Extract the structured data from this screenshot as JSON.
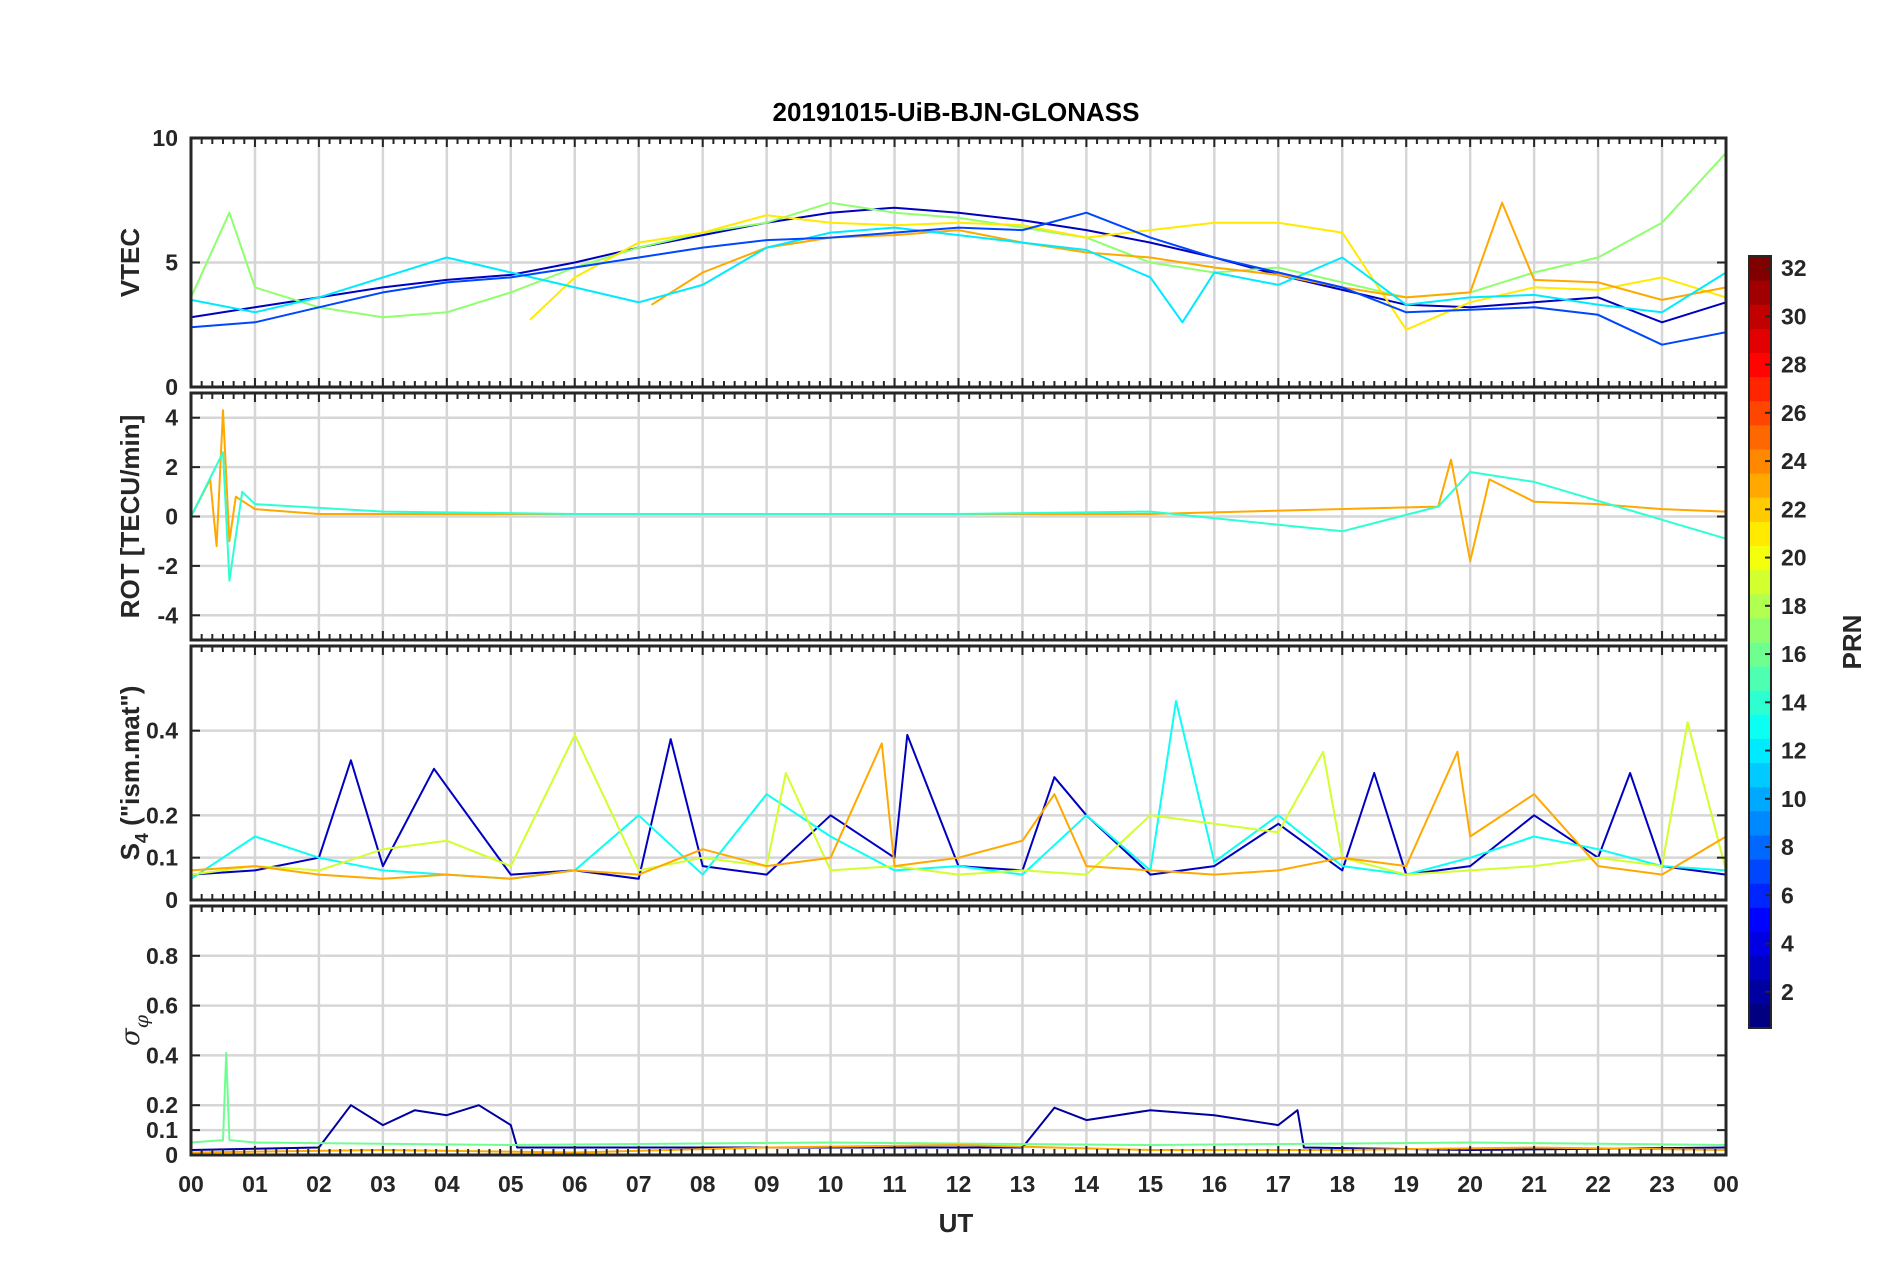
{
  "chart_data": {
    "type": "line",
    "title": "20191015-UiB-BJN-GLONASS",
    "xlabel": "UT",
    "x_tick_labels": [
      "00",
      "01",
      "02",
      "03",
      "04",
      "05",
      "06",
      "07",
      "08",
      "09",
      "10",
      "11",
      "12",
      "13",
      "14",
      "15",
      "16",
      "17",
      "18",
      "19",
      "20",
      "21",
      "22",
      "23",
      "00"
    ],
    "xlim": [
      0,
      24
    ],
    "grid": true,
    "colorbar": {
      "label": "PRN",
      "colormap": "jet",
      "range": [
        1,
        32
      ],
      "tick_labels": [
        "2",
        "4",
        "6",
        "8",
        "10",
        "12",
        "14",
        "16",
        "18",
        "20",
        "22",
        "24",
        "26",
        "28",
        "30",
        "32"
      ]
    },
    "panels": [
      {
        "id": "vtec",
        "ylabel": "VTEC",
        "ylim": [
          0,
          10
        ],
        "yticks": [
          0,
          5,
          10
        ],
        "ytick_labels": [
          "0",
          "5",
          "10"
        ],
        "series": [
          {
            "prn": 3,
            "x": [
              0,
              1,
              2,
              3,
              4,
              5,
              6,
              7,
              8,
              9,
              10,
              11,
              12,
              13,
              14,
              15,
              16,
              17,
              18,
              19,
              20,
              21,
              22,
              23,
              24
            ],
            "y": [
              2.8,
              3.2,
              3.6,
              4.0,
              4.3,
              4.5,
              5.0,
              5.6,
              6.1,
              6.6,
              7.0,
              7.2,
              7.0,
              6.7,
              6.3,
              5.8,
              5.2,
              4.5,
              3.9,
              3.3,
              3.2,
              3.4,
              3.6,
              2.6,
              3.4
            ]
          },
          {
            "prn": 17,
            "x": [
              0,
              0.6,
              1,
              2,
              3,
              4,
              5,
              6,
              7,
              8,
              9,
              10,
              11,
              12,
              13,
              14,
              15,
              16,
              17,
              18,
              19,
              20,
              21,
              22,
              23,
              24
            ],
            "y": [
              3.6,
              7.0,
              4.0,
              3.2,
              2.8,
              3.0,
              3.8,
              4.8,
              5.6,
              6.2,
              6.6,
              7.4,
              7.0,
              6.8,
              6.4,
              6.0,
              5.0,
              4.6,
              4.8,
              4.2,
              3.6,
              3.8,
              4.6,
              5.2,
              6.6,
              9.4
            ]
          },
          {
            "prn": 21,
            "x": [
              5.3,
              6,
              7,
              8,
              9,
              10,
              11,
              12,
              13,
              14,
              15,
              16,
              17,
              18,
              19,
              20,
              21,
              22,
              23,
              24
            ],
            "y": [
              2.7,
              4.4,
              5.8,
              6.2,
              6.9,
              6.6,
              6.5,
              6.6,
              6.5,
              6.0,
              6.3,
              6.6,
              6.6,
              6.2,
              2.3,
              3.4,
              4.0,
              3.9,
              4.4,
              3.6
            ]
          },
          {
            "prn": 23,
            "x": [
              7.2,
              8,
              9,
              10,
              11,
              12,
              13,
              14,
              15,
              16,
              17,
              18,
              19,
              20,
              20.5,
              21,
              22,
              23,
              24
            ],
            "y": [
              3.3,
              4.6,
              5.6,
              6.0,
              6.1,
              6.3,
              5.8,
              5.4,
              5.2,
              4.8,
              4.5,
              4.0,
              3.6,
              3.8,
              7.4,
              4.3,
              4.2,
              3.5,
              4.0
            ]
          },
          {
            "prn": 12,
            "x": [
              0,
              1,
              2,
              3,
              4,
              5,
              6,
              7,
              8,
              9,
              10,
              11,
              12,
              13,
              14,
              15,
              15.5,
              16,
              17,
              18,
              19,
              20,
              21,
              22,
              23,
              24
            ],
            "y": [
              3.5,
              3.0,
              3.6,
              4.4,
              5.2,
              4.6,
              4.0,
              3.4,
              4.1,
              5.6,
              6.2,
              6.4,
              6.1,
              5.8,
              5.5,
              4.4,
              2.6,
              4.6,
              4.1,
              5.2,
              3.3,
              3.6,
              3.7,
              3.3,
              3.0,
              4.6
            ]
          },
          {
            "prn": 7,
            "x": [
              0,
              1,
              2,
              3,
              4,
              5,
              6,
              7,
              8,
              9,
              10,
              11,
              12,
              13,
              14,
              15,
              16,
              17,
              18,
              19,
              20,
              21,
              22,
              23,
              24
            ],
            "y": [
              2.4,
              2.6,
              3.2,
              3.8,
              4.2,
              4.4,
              4.8,
              5.2,
              5.6,
              5.9,
              6.0,
              6.2,
              6.4,
              6.3,
              7.0,
              6.0,
              5.2,
              4.6,
              4.0,
              3.0,
              3.1,
              3.2,
              2.9,
              1.7,
              2.2
            ]
          }
        ]
      },
      {
        "id": "rot",
        "ylabel": "ROT [TECU/min]",
        "ylim": [
          -5,
          5
        ],
        "yticks": [
          -4,
          -2,
          0,
          2,
          4
        ],
        "ytick_labels": [
          "-4",
          "-2",
          "0",
          "2",
          "4"
        ],
        "series": [
          {
            "prn": 23,
            "x": [
              0,
              0.3,
              0.4,
              0.5,
              0.6,
              0.7,
              1,
              2,
              5,
              10,
              15,
              19.5,
              19.7,
              20,
              20.3,
              21,
              22,
              23,
              24
            ],
            "y": [
              0,
              1.5,
              -1.2,
              4.3,
              -1.0,
              0.8,
              0.3,
              0.1,
              0.1,
              0.1,
              0.1,
              0.4,
              2.3,
              -1.8,
              1.5,
              0.6,
              0.5,
              0.3,
              0.2
            ]
          },
          {
            "prn": 14,
            "x": [
              0,
              0.5,
              0.6,
              0.8,
              1,
              3,
              6,
              9,
              12,
              15,
              18,
              19.5,
              20,
              21,
              24
            ],
            "y": [
              0,
              2.6,
              -2.6,
              1.0,
              0.5,
              0.2,
              0.1,
              0.1,
              0.1,
              0.2,
              -0.6,
              0.4,
              1.8,
              1.4,
              -0.9
            ]
          }
        ]
      },
      {
        "id": "s4",
        "ylabel": "S4 (\"ism.mat\")",
        "ylim": [
          0,
          0.6
        ],
        "yticks": [
          0,
          0.1,
          0.2,
          0.4
        ],
        "ytick_labels": [
          "0",
          "0.1",
          "0.2",
          "0.4"
        ],
        "series": [
          {
            "prn": 3,
            "x": [
              0,
              1,
              2,
              2.5,
              3,
              3.8,
              5,
              6,
              7,
              7.5,
              8,
              9,
              10,
              11,
              11.2,
              12,
              13,
              13.5,
              14,
              15,
              16,
              17,
              18,
              18.5,
              19,
              20,
              21,
              22,
              22.5,
              23,
              24
            ],
            "y": [
              0.06,
              0.07,
              0.1,
              0.33,
              0.08,
              0.31,
              0.06,
              0.07,
              0.05,
              0.38,
              0.08,
              0.06,
              0.2,
              0.1,
              0.39,
              0.08,
              0.07,
              0.29,
              0.2,
              0.06,
              0.08,
              0.18,
              0.07,
              0.3,
              0.06,
              0.08,
              0.2,
              0.1,
              0.3,
              0.08,
              0.06
            ]
          },
          {
            "prn": 13,
            "x": [
              0,
              1,
              2,
              3,
              4,
              5,
              6,
              7,
              8,
              9,
              10,
              11,
              12,
              13,
              14,
              15,
              15.4,
              16,
              17,
              18,
              19,
              20,
              21,
              22,
              23,
              24
            ],
            "y": [
              0.05,
              0.15,
              0.1,
              0.07,
              0.06,
              0.05,
              0.07,
              0.2,
              0.06,
              0.25,
              0.15,
              0.07,
              0.08,
              0.06,
              0.2,
              0.07,
              0.47,
              0.09,
              0.2,
              0.08,
              0.06,
              0.1,
              0.15,
              0.12,
              0.08,
              0.07
            ]
          },
          {
            "prn": 19,
            "x": [
              0,
              1,
              2,
              3,
              4,
              5,
              6,
              7,
              8,
              9,
              9.3,
              10,
              11,
              12,
              13,
              14,
              15,
              16,
              17,
              17.7,
              18,
              19,
              20,
              21,
              22,
              23,
              23.4,
              24
            ],
            "y": [
              0.06,
              0.08,
              0.07,
              0.12,
              0.14,
              0.08,
              0.39,
              0.07,
              0.1,
              0.08,
              0.3,
              0.07,
              0.08,
              0.06,
              0.07,
              0.06,
              0.2,
              0.18,
              0.16,
              0.35,
              0.1,
              0.06,
              0.07,
              0.08,
              0.1,
              0.08,
              0.42,
              0.07
            ]
          },
          {
            "prn": 23,
            "x": [
              0,
              1,
              2,
              3,
              4,
              5,
              6,
              7,
              8,
              9,
              10,
              10.8,
              11,
              12,
              13,
              13.5,
              14,
              15,
              16,
              17,
              18,
              19,
              19.8,
              20,
              21,
              22,
              23,
              24
            ],
            "y": [
              0.07,
              0.08,
              0.06,
              0.05,
              0.06,
              0.05,
              0.07,
              0.06,
              0.12,
              0.08,
              0.1,
              0.37,
              0.08,
              0.1,
              0.14,
              0.25,
              0.08,
              0.07,
              0.06,
              0.07,
              0.1,
              0.08,
              0.35,
              0.15,
              0.25,
              0.08,
              0.06,
              0.15
            ]
          }
        ]
      },
      {
        "id": "sigma",
        "ylabel": "σφ",
        "ylim": [
          0,
          1
        ],
        "yticks": [
          0,
          0.1,
          0.2,
          0.4,
          0.6,
          0.8
        ],
        "ytick_labels": [
          "0",
          "0.1",
          "0.2",
          "0.4",
          "0.6",
          "0.8"
        ],
        "series": [
          {
            "prn": 2,
            "x": [
              0,
              2,
              2.5,
              3,
              3.5,
              4,
              4.5,
              5,
              5.1,
              9,
              13,
              13.5,
              14,
              15,
              16,
              17,
              17.3,
              17.4,
              20,
              24
            ],
            "y": [
              0.02,
              0.03,
              0.2,
              0.12,
              0.18,
              0.16,
              0.2,
              0.12,
              0.03,
              0.03,
              0.03,
              0.19,
              0.14,
              0.18,
              0.16,
              0.12,
              0.18,
              0.03,
              0.02,
              0.03
            ]
          },
          {
            "prn": 16,
            "x": [
              0,
              0.5,
              0.55,
              0.6,
              1,
              5,
              10,
              15,
              20,
              24
            ],
            "y": [
              0.05,
              0.06,
              0.41,
              0.06,
              0.05,
              0.04,
              0.05,
              0.04,
              0.05,
              0.04
            ]
          },
          {
            "prn": 23,
            "x": [
              0,
              3,
              6,
              9,
              12,
              15,
              18,
              21,
              24
            ],
            "y": [
              0.01,
              0.02,
              0.01,
              0.03,
              0.04,
              0.02,
              0.02,
              0.03,
              0.02
            ]
          }
        ]
      }
    ]
  }
}
